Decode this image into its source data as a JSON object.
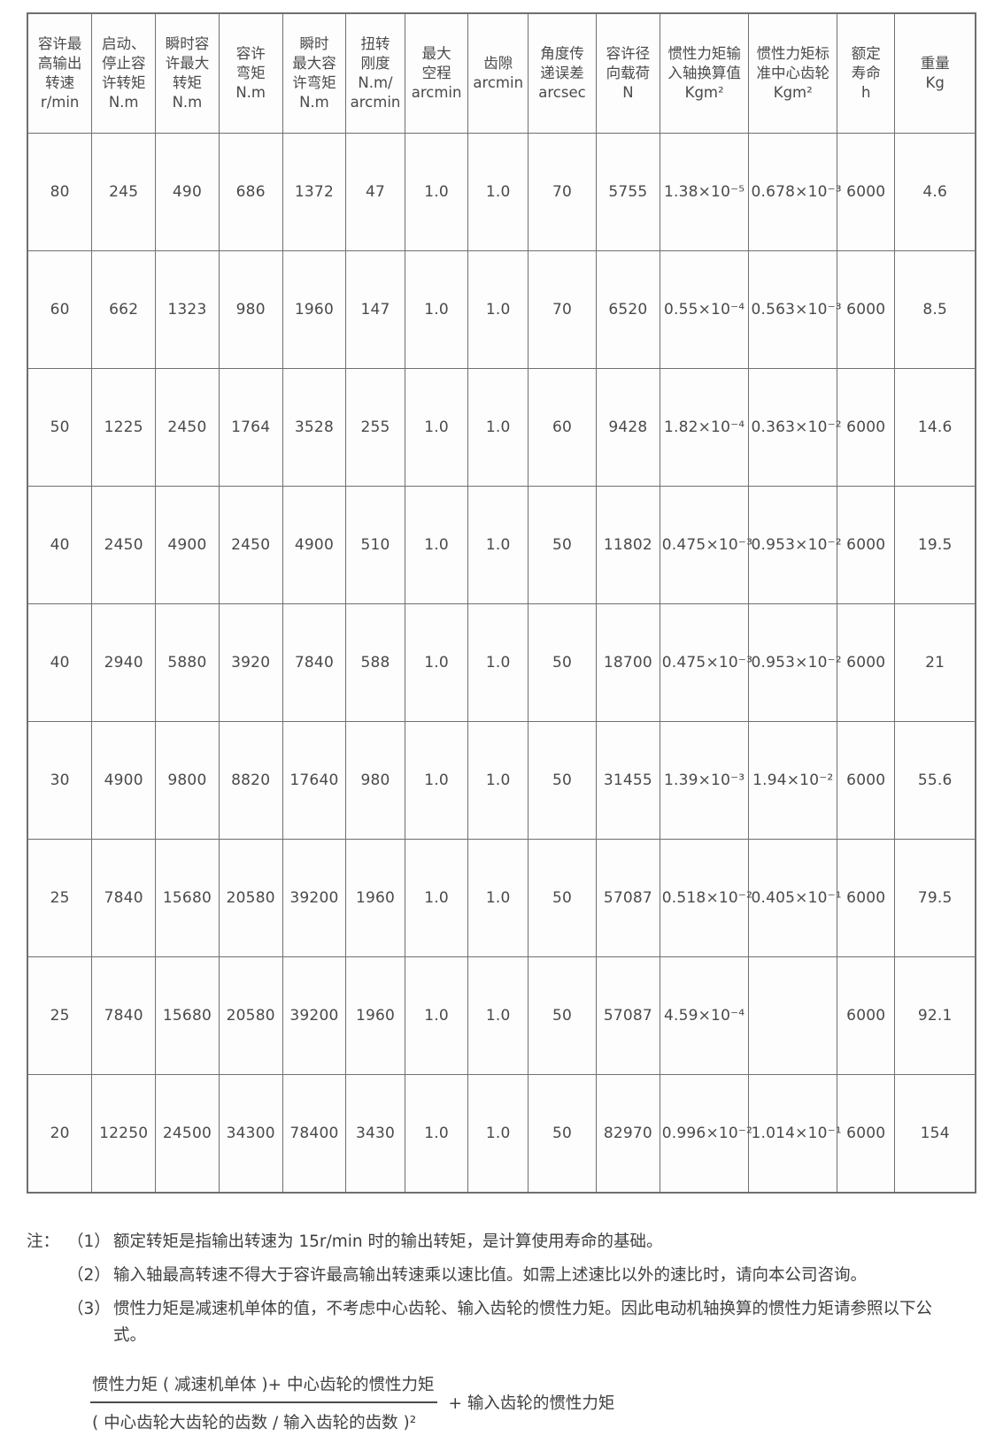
{
  "page": {
    "background_color": "#ffffff",
    "border_color": "#6f6f6f",
    "text_color": "#454545"
  },
  "table": {
    "headers": [
      {
        "lines": [
          "容许最",
          "高输出",
          "转速",
          "r/min"
        ]
      },
      {
        "lines": [
          "启动、",
          "停止容",
          "许转矩",
          "N.m"
        ]
      },
      {
        "lines": [
          "瞬时容",
          "许最大",
          "转矩",
          "N.m"
        ]
      },
      {
        "lines": [
          "容许",
          "弯矩",
          "N.m"
        ]
      },
      {
        "lines": [
          "瞬时",
          "最大容",
          "许弯矩",
          "N.m"
        ]
      },
      {
        "lines": [
          "扭转",
          "刚度",
          "N.m/",
          "arcmin"
        ]
      },
      {
        "lines": [
          "最大",
          "空程",
          "arcmin"
        ]
      },
      {
        "lines": [
          "齿隙",
          "arcmin"
        ]
      },
      {
        "lines": [
          "角度传",
          "递误差",
          "arcsec"
        ]
      },
      {
        "lines": [
          "容许径",
          "向载荷",
          "N"
        ]
      },
      {
        "lines": [
          "惯性力矩输",
          "入轴换算值",
          "Kgm²"
        ]
      },
      {
        "lines": [
          "惯性力矩标",
          "准中心齿轮",
          "Kgm²"
        ]
      },
      {
        "lines": [
          "额定",
          "寿命",
          "h"
        ]
      },
      {
        "lines": [
          "重量",
          "Kg"
        ]
      }
    ],
    "rows": [
      [
        "80",
        "245",
        "490",
        "686",
        "1372",
        "47",
        "1.0",
        "1.0",
        "70",
        "5755",
        "1.38×10⁻⁵",
        "0.678×10⁻³",
        "6000",
        "4.6"
      ],
      [
        "60",
        "662",
        "1323",
        "980",
        "1960",
        "147",
        "1.0",
        "1.0",
        "70",
        "6520",
        "0.55×10⁻⁴",
        "0.563×10⁻³",
        "6000",
        "8.5"
      ],
      [
        "50",
        "1225",
        "2450",
        "1764",
        "3528",
        "255",
        "1.0",
        "1.0",
        "60",
        "9428",
        "1.82×10⁻⁴",
        "0.363×10⁻²",
        "6000",
        "14.6"
      ],
      [
        "40",
        "2450",
        "4900",
        "2450",
        "4900",
        "510",
        "1.0",
        "1.0",
        "50",
        "11802",
        "0.475×10⁻³",
        "0.953×10⁻²",
        "6000",
        "19.5"
      ],
      [
        "40",
        "2940",
        "5880",
        "3920",
        "7840",
        "588",
        "1.0",
        "1.0",
        "50",
        "18700",
        "0.475×10⁻³",
        "0.953×10⁻²",
        "6000",
        "21"
      ],
      [
        "30",
        "4900",
        "9800",
        "8820",
        "17640",
        "980",
        "1.0",
        "1.0",
        "50",
        "31455",
        "1.39×10⁻³",
        "1.94×10⁻²",
        "6000",
        "55.6"
      ],
      [
        "25",
        "7840",
        "15680",
        "20580",
        "39200",
        "1960",
        "1.0",
        "1.0",
        "50",
        "57087",
        "0.518×10⁻²",
        "0.405×10⁻¹",
        "6000",
        "79.5"
      ],
      [
        "25",
        "7840",
        "15680",
        "20580",
        "39200",
        "1960",
        "1.0",
        "1.0",
        "50",
        "57087",
        "4.59×10⁻⁴",
        "",
        "6000",
        "92.1"
      ],
      [
        "20",
        "12250",
        "24500",
        "34300",
        "78400",
        "3430",
        "1.0",
        "1.0",
        "50",
        "82970",
        "0.996×10⁻²",
        "1.014×10⁻¹",
        "6000",
        "154"
      ]
    ]
  },
  "notes": {
    "label": "注：",
    "items": [
      {
        "marker": "（1）",
        "text": "额定转矩是指输出转速为 15r/min 时的输出转矩，是计算使用寿命的基础。"
      },
      {
        "marker": "（2）",
        "text": "输入轴最高转速不得大于容许最高输出转速乘以速比值。如需上述速比以外的速比时，请向本公司咨询。"
      },
      {
        "marker": "（3）",
        "text": "惯性力矩是减速机单体的值，不考虑中心齿轮、输入齿轮的惯性力矩。因此电动机轴换算的惯性力矩请参照以下公式。"
      }
    ]
  },
  "formula": {
    "numerator": "惯性力矩 ( 减速机单体 )+ 中心齿轮的惯性力矩",
    "denominator": "( 中心齿轮大齿轮的齿数 / 输入齿轮的齿数 )²",
    "suffix": "+ 输入齿轮的惯性力矩"
  }
}
